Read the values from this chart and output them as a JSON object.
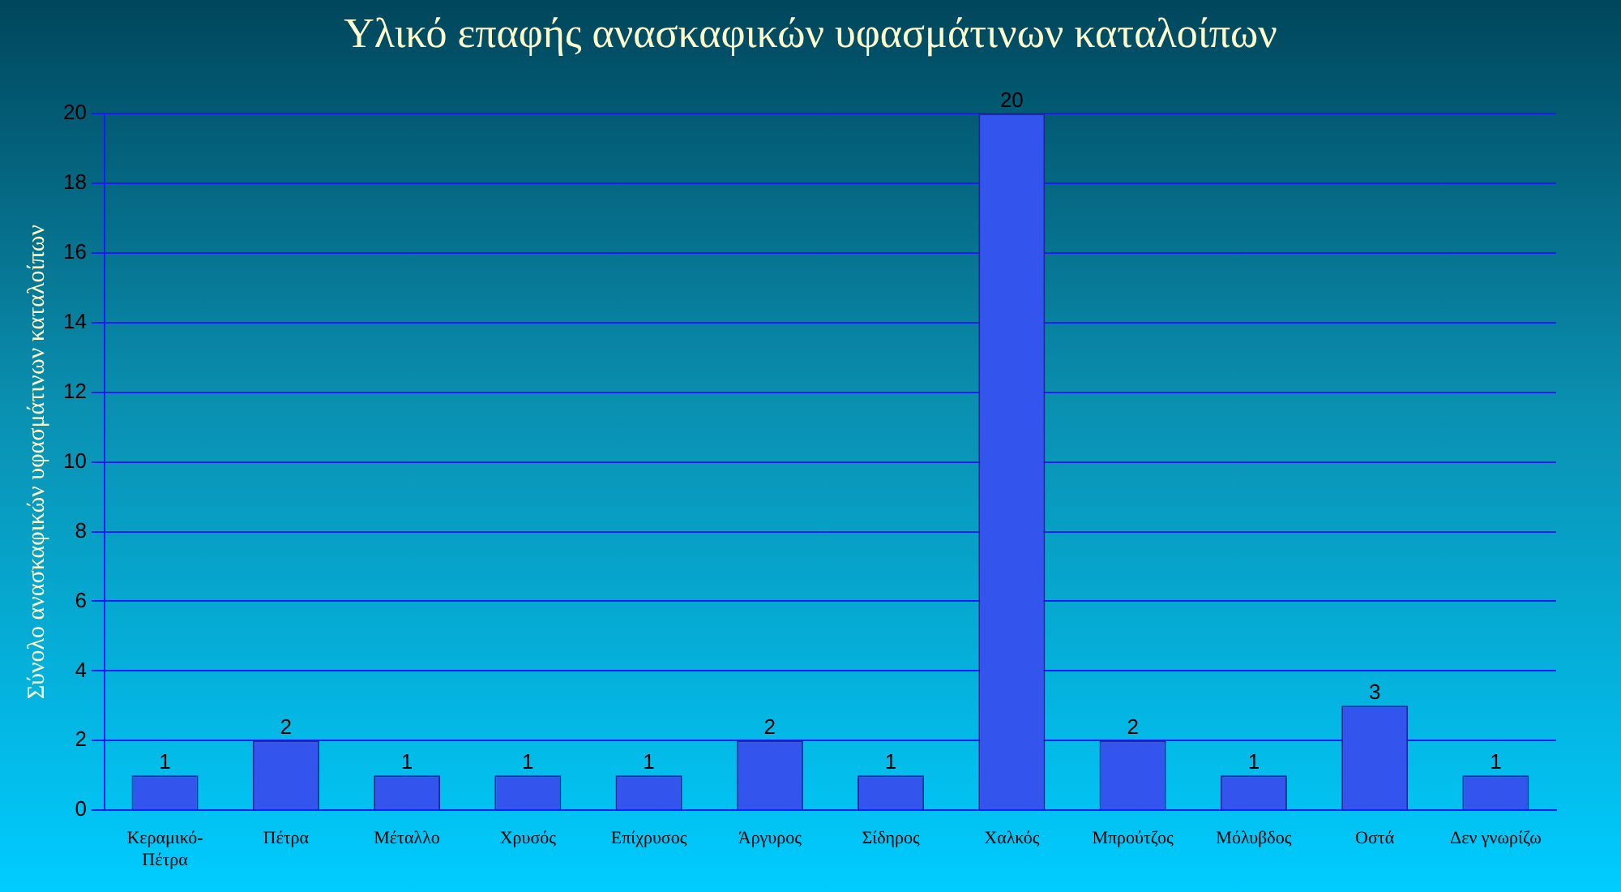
{
  "chart_data": {
    "type": "bar",
    "title": "Υλικό επαφής ανασκαφικών υφασμάτινων καταλοίπων",
    "ylabel": "Σύνολο ανασκαφικών υφασμάτινων καταλοίπων",
    "categories": [
      "Κεραμικό-Πέτρα",
      "Πέτρα",
      "Μέταλλο",
      "Χρυσός",
      "Επίχρυσος",
      "Άργυρος",
      "Σίδηρος",
      "Χαλκός",
      "Μπρούτζος",
      "Μόλυβδος",
      "Οστά",
      "Δεν γνωρίζω"
    ],
    "values": [
      1,
      2,
      1,
      1,
      1,
      2,
      1,
      20,
      2,
      1,
      3,
      1
    ],
    "color": "#3355ee",
    "ylim": [
      0,
      20
    ],
    "yticks": [
      0,
      2,
      4,
      6,
      8,
      10,
      12,
      14,
      16,
      18,
      20
    ],
    "grid": "y",
    "data_labels": true,
    "legend": false
  }
}
